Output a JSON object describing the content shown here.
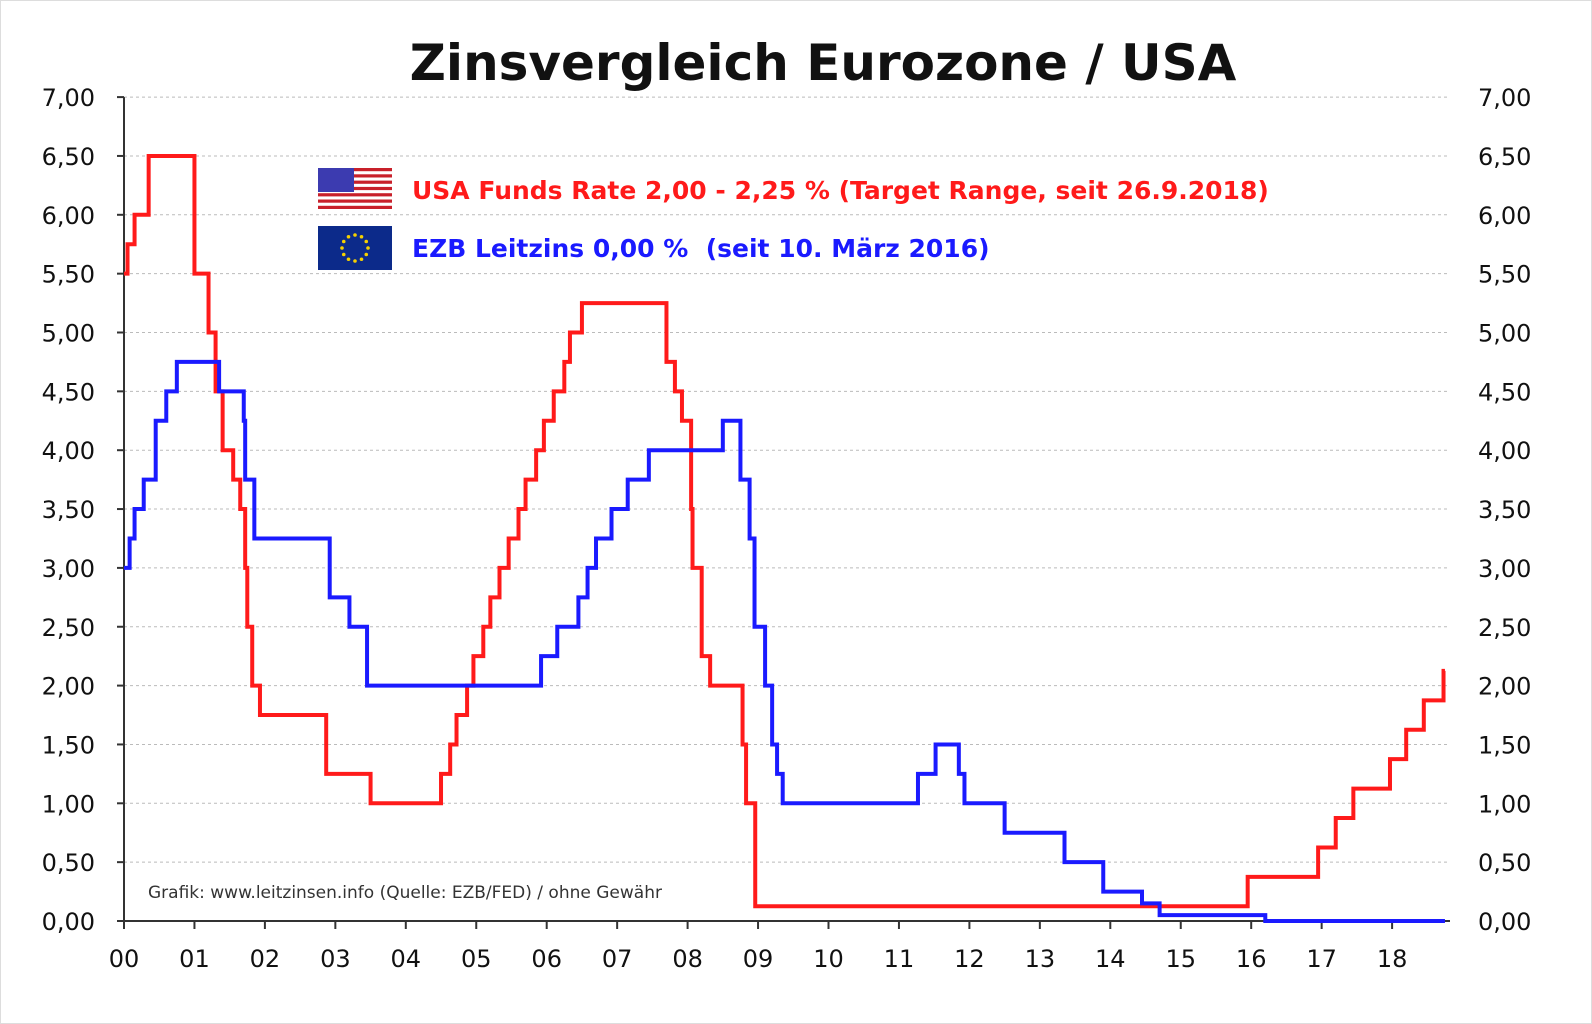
{
  "chart_data": {
    "type": "line",
    "title": "Zinsvergleich Eurozone / USA",
    "xlabel": "",
    "ylabel": "",
    "x_tick_labels": [
      "00",
      "01",
      "02",
      "03",
      "04",
      "05",
      "06",
      "07",
      "08",
      "09",
      "10",
      "11",
      "12",
      "13",
      "14",
      "15",
      "16",
      "17",
      "18"
    ],
    "y_tick_labels": [
      "0,00",
      "0,50",
      "1,00",
      "1,50",
      "2,00",
      "2,50",
      "3,00",
      "3,50",
      "4,00",
      "4,50",
      "5,00",
      "5,50",
      "6,00",
      "6,50",
      "7,00"
    ],
    "xlim": [
      0,
      18.8
    ],
    "ylim": [
      0,
      7
    ],
    "grid": true,
    "legend_position": "top-center",
    "step": true,
    "series": [
      {
        "name": "USA Funds Rate 2,00 - 2,25 % (Target Range, seit 26.9.2018)",
        "color": "#ff1a1a",
        "flag": "us-flag",
        "points": [
          [
            0,
            5.5
          ],
          [
            0.05,
            5.75
          ],
          [
            0.15,
            6.0
          ],
          [
            0.35,
            6.5
          ],
          [
            1.0,
            5.5
          ],
          [
            1.2,
            5.0
          ],
          [
            1.3,
            4.5
          ],
          [
            1.4,
            4.0
          ],
          [
            1.55,
            3.75
          ],
          [
            1.65,
            3.5
          ],
          [
            1.72,
            3.0
          ],
          [
            1.75,
            2.5
          ],
          [
            1.82,
            2.0
          ],
          [
            1.93,
            1.75
          ],
          [
            2.87,
            1.25
          ],
          [
            3.5,
            1.0
          ],
          [
            4.5,
            1.25
          ],
          [
            4.63,
            1.5
          ],
          [
            4.72,
            1.75
          ],
          [
            4.87,
            2.0
          ],
          [
            4.96,
            2.25
          ],
          [
            5.1,
            2.5
          ],
          [
            5.2,
            2.75
          ],
          [
            5.33,
            3.0
          ],
          [
            5.46,
            3.25
          ],
          [
            5.6,
            3.5
          ],
          [
            5.7,
            3.75
          ],
          [
            5.85,
            4.0
          ],
          [
            5.96,
            4.25
          ],
          [
            6.1,
            4.5
          ],
          [
            6.25,
            4.75
          ],
          [
            6.33,
            5.0
          ],
          [
            6.5,
            5.25
          ],
          [
            7.7,
            4.75
          ],
          [
            7.82,
            4.5
          ],
          [
            7.92,
            4.25
          ],
          [
            8.05,
            3.5
          ],
          [
            8.07,
            3.0
          ],
          [
            8.2,
            2.25
          ],
          [
            8.32,
            2.0
          ],
          [
            8.78,
            1.5
          ],
          [
            8.83,
            1.0
          ],
          [
            8.96,
            0.125
          ],
          [
            15.95,
            0.375
          ],
          [
            16.95,
            0.625
          ],
          [
            17.2,
            0.875
          ],
          [
            17.45,
            1.125
          ],
          [
            17.97,
            1.375
          ],
          [
            18.2,
            1.625
          ],
          [
            18.45,
            1.875
          ],
          [
            18.73,
            2.125
          ],
          [
            18.75,
            2.125
          ]
        ]
      },
      {
        "name": "EZB Leitzins 0,00 %  (seit 10. März 2016)",
        "color": "#1a1aff",
        "flag": "eu-flag",
        "points": [
          [
            0,
            3.0
          ],
          [
            0.08,
            3.25
          ],
          [
            0.15,
            3.5
          ],
          [
            0.28,
            3.75
          ],
          [
            0.45,
            4.25
          ],
          [
            0.6,
            4.5
          ],
          [
            0.75,
            4.75
          ],
          [
            1.35,
            4.5
          ],
          [
            1.7,
            4.25
          ],
          [
            1.72,
            3.75
          ],
          [
            1.85,
            3.25
          ],
          [
            2.92,
            2.75
          ],
          [
            3.2,
            2.5
          ],
          [
            3.45,
            2.0
          ],
          [
            5.92,
            2.25
          ],
          [
            6.15,
            2.5
          ],
          [
            6.45,
            2.75
          ],
          [
            6.58,
            3.0
          ],
          [
            6.7,
            3.25
          ],
          [
            6.92,
            3.5
          ],
          [
            7.15,
            3.75
          ],
          [
            7.45,
            4.0
          ],
          [
            8.5,
            4.25
          ],
          [
            8.75,
            3.75
          ],
          [
            8.88,
            3.25
          ],
          [
            8.95,
            2.5
          ],
          [
            9.1,
            2.0
          ],
          [
            9.2,
            1.5
          ],
          [
            9.27,
            1.25
          ],
          [
            9.35,
            1.0
          ],
          [
            11.27,
            1.25
          ],
          [
            11.52,
            1.5
          ],
          [
            11.85,
            1.25
          ],
          [
            11.93,
            1.0
          ],
          [
            12.5,
            0.75
          ],
          [
            13.35,
            0.5
          ],
          [
            13.9,
            0.25
          ],
          [
            14.45,
            0.15
          ],
          [
            14.7,
            0.05
          ],
          [
            16.2,
            0.0
          ],
          [
            18.75,
            0.0
          ]
        ]
      }
    ],
    "annotations": [
      "Grafik: www.leitzinsen.info (Quelle: EZB/FED) / ohne Gewähr"
    ]
  }
}
